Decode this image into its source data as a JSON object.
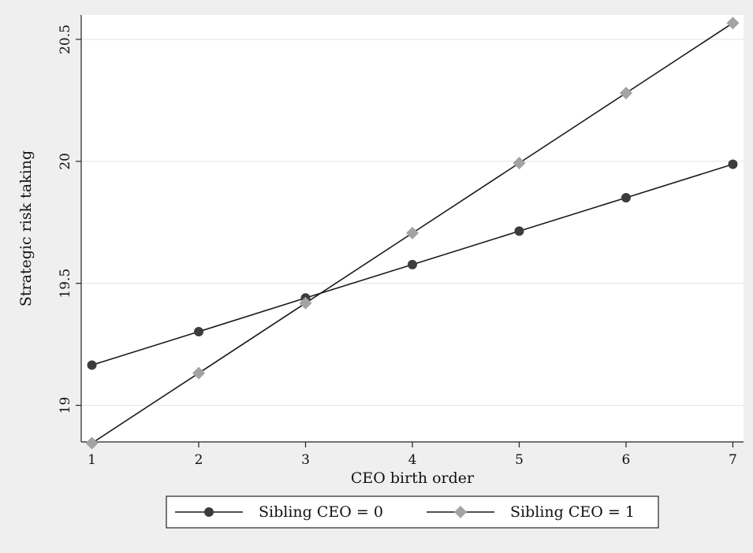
{
  "chart_data": {
    "type": "line",
    "xlabel": "CEO birth order",
    "ylabel": "Strategic risk taking",
    "x": [
      1,
      2,
      3,
      4,
      5,
      6,
      7
    ],
    "xlim": [
      0.9,
      7.1
    ],
    "ylim": [
      18.85,
      20.6
    ],
    "x_ticks": [
      "1",
      "2",
      "3",
      "4",
      "5",
      "6",
      "7"
    ],
    "y_ticks": [
      19,
      19.5,
      20,
      20.5
    ],
    "y_tick_labels": [
      "19",
      "19.5",
      "20",
      "20.5"
    ],
    "grid": true,
    "legend_position": "bottom",
    "series": [
      {
        "name": "Sibling CEO = 0",
        "marker": "circle",
        "color": "#3c3c3c",
        "values": [
          19.165,
          19.302,
          19.44,
          19.577,
          19.714,
          19.851,
          19.988
        ]
      },
      {
        "name": "Sibling CEO = 1",
        "marker": "diamond",
        "color": "#a3a3a3",
        "values": [
          18.845,
          19.132,
          19.419,
          19.706,
          19.993,
          20.28,
          20.567
        ]
      }
    ],
    "colors": {
      "background": "#efefef",
      "plot_background": "#ffffff",
      "line": "#1a1a1a",
      "grid": "#e6e6e6"
    }
  }
}
